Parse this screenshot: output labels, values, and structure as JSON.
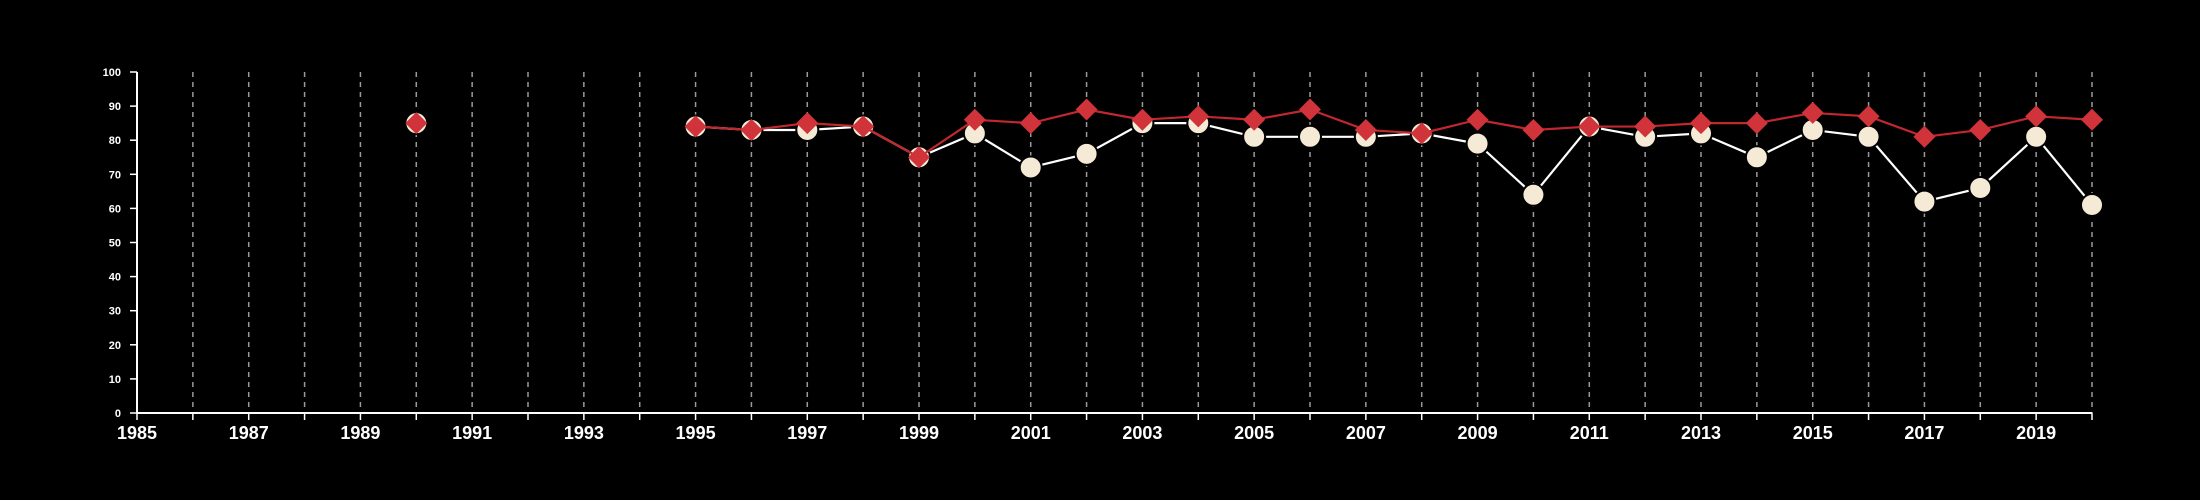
{
  "chart_data": {
    "type": "line",
    "title": "",
    "xlabel": "",
    "ylabel": "",
    "xlim": [
      1985,
      2020
    ],
    "ylim": [
      0,
      100
    ],
    "x_ticks": [
      1985,
      1987,
      1989,
      1991,
      1993,
      1995,
      1997,
      1999,
      2001,
      2003,
      2005,
      2007,
      2009,
      2011,
      2013,
      2015,
      2017,
      2019
    ],
    "y_ticks": [
      0,
      10,
      20,
      30,
      40,
      50,
      60,
      70,
      80,
      90,
      100
    ],
    "grid": "vertical dashed at every year",
    "legend": "none",
    "background": "#000000",
    "x": [
      1990,
      1995,
      1996,
      1997,
      1998,
      1999,
      2000,
      2001,
      2002,
      2003,
      2004,
      2005,
      2006,
      2007,
      2008,
      2009,
      2010,
      2011,
      2012,
      2013,
      2014,
      2015,
      2016,
      2017,
      2018,
      2019,
      2020
    ],
    "series": [
      {
        "color": "#f5ead6",
        "line_color": "#ffffff",
        "marker": "circle",
        "values": [
          85,
          84,
          83,
          83,
          84,
          75,
          82,
          72,
          76,
          85,
          85,
          81,
          81,
          81,
          82,
          79,
          64,
          84,
          81,
          82,
          75,
          83,
          81,
          62,
          66,
          81,
          61
        ]
      },
      {
        "color": "#d0343a",
        "line_color": "#c0282e",
        "marker": "diamond",
        "values": [
          85,
          84,
          83,
          85,
          84,
          75,
          86,
          85,
          89,
          86,
          87,
          86,
          89,
          83,
          82,
          86,
          83,
          84,
          84,
          85,
          85,
          88,
          87,
          81,
          83,
          87,
          86
        ]
      }
    ]
  }
}
